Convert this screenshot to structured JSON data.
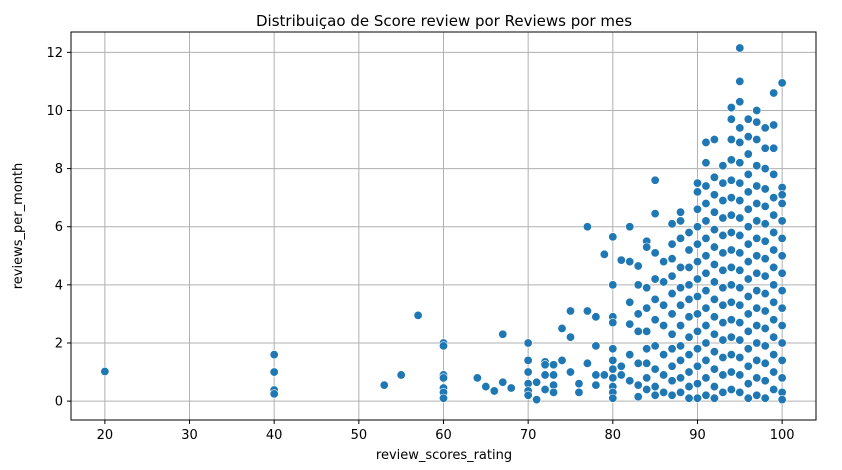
{
  "chart_data": {
    "type": "scatter",
    "title": "Distribuiçao de Score review por Reviews por mes",
    "xlabel": "review_scores_rating",
    "ylabel": "reviews_per_month",
    "xlim": [
      16,
      104
    ],
    "ylim": [
      -0.65,
      12.7
    ],
    "xticks": [
      20,
      30,
      40,
      50,
      60,
      70,
      80,
      90,
      100
    ],
    "yticks": [
      0,
      2,
      4,
      6,
      8,
      10,
      12
    ],
    "grid": true,
    "point_color": "#1f77b4",
    "points": [
      [
        20,
        1.02
      ],
      [
        40,
        1.6
      ],
      [
        40,
        1.0
      ],
      [
        40,
        0.38
      ],
      [
        40,
        0.25
      ],
      [
        53,
        0.55
      ],
      [
        55,
        0.9
      ],
      [
        57,
        2.95
      ],
      [
        60,
        2.0
      ],
      [
        60,
        1.9
      ],
      [
        60,
        0.9
      ],
      [
        60,
        0.8
      ],
      [
        60,
        0.45
      ],
      [
        60,
        0.3
      ],
      [
        60,
        0.1
      ],
      [
        64,
        0.8
      ],
      [
        65,
        0.5
      ],
      [
        66,
        0.35
      ],
      [
        67,
        0.65
      ],
      [
        67,
        2.3
      ],
      [
        68,
        0.45
      ],
      [
        70,
        2.0
      ],
      [
        70,
        1.4
      ],
      [
        70,
        1.0
      ],
      [
        70,
        0.6
      ],
      [
        70,
        0.35
      ],
      [
        70,
        0.2
      ],
      [
        71,
        0.05
      ],
      [
        71,
        0.65
      ],
      [
        72,
        1.35
      ],
      [
        72,
        1.25
      ],
      [
        72,
        0.9
      ],
      [
        72,
        0.4
      ],
      [
        73,
        1.25
      ],
      [
        73,
        0.9
      ],
      [
        73,
        0.55
      ],
      [
        73,
        0.3
      ],
      [
        74,
        1.4
      ],
      [
        74,
        2.5
      ],
      [
        75,
        1.0
      ],
      [
        75,
        2.2
      ],
      [
        75,
        3.1
      ],
      [
        76,
        0.3
      ],
      [
        76,
        0.6
      ],
      [
        77,
        1.3
      ],
      [
        77,
        3.1
      ],
      [
        77,
        6.0
      ],
      [
        78,
        0.55
      ],
      [
        78,
        0.9
      ],
      [
        78,
        1.9
      ],
      [
        78,
        2.9
      ],
      [
        79,
        0.9
      ],
      [
        79,
        5.05
      ],
      [
        80,
        5.65
      ],
      [
        80,
        4.0
      ],
      [
        80,
        2.9
      ],
      [
        80,
        2.7
      ],
      [
        80,
        1.8
      ],
      [
        80,
        1.4
      ],
      [
        80,
        1.1
      ],
      [
        80,
        0.8
      ],
      [
        80,
        0.5
      ],
      [
        80,
        0.3
      ],
      [
        80,
        0.1
      ],
      [
        81,
        4.85
      ],
      [
        81,
        1.2
      ],
      [
        81,
        0.9
      ],
      [
        82,
        6.0
      ],
      [
        82,
        4.8
      ],
      [
        82,
        3.4
      ],
      [
        82,
        2.65
      ],
      [
        82,
        1.6
      ],
      [
        82,
        0.7
      ],
      [
        83,
        4.65
      ],
      [
        83,
        4.0
      ],
      [
        83,
        3.0
      ],
      [
        83,
        2.4
      ],
      [
        83,
        1.3
      ],
      [
        83,
        0.55
      ],
      [
        83,
        0.15
      ],
      [
        84,
        5.5
      ],
      [
        84,
        5.3
      ],
      [
        84,
        3.9
      ],
      [
        84,
        3.2
      ],
      [
        84,
        2.4
      ],
      [
        84,
        1.8
      ],
      [
        84,
        1.3
      ],
      [
        84,
        0.8
      ],
      [
        84,
        0.4
      ],
      [
        85,
        7.6
      ],
      [
        85,
        6.45
      ],
      [
        85,
        5.1
      ],
      [
        85,
        4.2
      ],
      [
        85,
        3.5
      ],
      [
        85,
        2.8
      ],
      [
        85,
        1.9
      ],
      [
        85,
        1.1
      ],
      [
        85,
        0.5
      ],
      [
        85,
        0.2
      ],
      [
        86,
        4.8
      ],
      [
        86,
        4.1
      ],
      [
        86,
        3.3
      ],
      [
        86,
        2.6
      ],
      [
        86,
        1.6
      ],
      [
        86,
        0.9
      ],
      [
        86,
        0.3
      ],
      [
        87,
        6.1
      ],
      [
        87,
        5.4
      ],
      [
        87,
        4.9
      ],
      [
        87,
        4.3
      ],
      [
        87,
        3.7
      ],
      [
        87,
        3.0
      ],
      [
        87,
        2.3
      ],
      [
        87,
        1.8
      ],
      [
        87,
        1.2
      ],
      [
        87,
        0.7
      ],
      [
        87,
        0.2
      ],
      [
        88,
        6.5
      ],
      [
        88,
        6.2
      ],
      [
        88,
        5.6
      ],
      [
        88,
        4.6
      ],
      [
        88,
        3.9
      ],
      [
        88,
        3.3
      ],
      [
        88,
        2.6
      ],
      [
        88,
        1.9
      ],
      [
        88,
        1.4
      ],
      [
        88,
        0.8
      ],
      [
        88,
        0.3
      ],
      [
        89,
        5.8
      ],
      [
        89,
        5.2
      ],
      [
        89,
        4.6
      ],
      [
        89,
        4.0
      ],
      [
        89,
        3.5
      ],
      [
        89,
        2.9
      ],
      [
        89,
        2.2
      ],
      [
        89,
        1.6
      ],
      [
        89,
        1.0
      ],
      [
        89,
        0.5
      ],
      [
        89,
        0.1
      ],
      [
        90,
        7.5
      ],
      [
        90,
        7.2
      ],
      [
        90,
        6.6
      ],
      [
        90,
        6.0
      ],
      [
        90,
        5.4
      ],
      [
        90,
        4.8
      ],
      [
        90,
        4.2
      ],
      [
        90,
        3.6
      ],
      [
        90,
        3.0
      ],
      [
        90,
        2.4
      ],
      [
        90,
        1.8
      ],
      [
        90,
        1.2
      ],
      [
        90,
        0.6
      ],
      [
        90,
        0.1
      ],
      [
        91,
        8.9
      ],
      [
        91,
        8.2
      ],
      [
        91,
        7.4
      ],
      [
        91,
        6.8
      ],
      [
        91,
        6.2
      ],
      [
        91,
        5.6
      ],
      [
        91,
        5.0
      ],
      [
        91,
        4.4
      ],
      [
        91,
        3.8
      ],
      [
        91,
        3.2
      ],
      [
        91,
        2.6
      ],
      [
        91,
        2.0
      ],
      [
        91,
        1.4
      ],
      [
        91,
        0.8
      ],
      [
        91,
        0.2
      ],
      [
        92,
        9.0
      ],
      [
        92,
        7.7
      ],
      [
        92,
        7.1
      ],
      [
        92,
        6.5
      ],
      [
        92,
        5.9
      ],
      [
        92,
        5.3
      ],
      [
        92,
        4.7
      ],
      [
        92,
        4.1
      ],
      [
        92,
        3.5
      ],
      [
        92,
        2.9
      ],
      [
        92,
        2.3
      ],
      [
        92,
        1.7
      ],
      [
        92,
        1.1
      ],
      [
        92,
        0.5
      ],
      [
        92,
        0.1
      ],
      [
        93,
        8.1
      ],
      [
        93,
        7.5
      ],
      [
        93,
        6.9
      ],
      [
        93,
        6.3
      ],
      [
        93,
        5.7
      ],
      [
        93,
        5.1
      ],
      [
        93,
        4.5
      ],
      [
        93,
        3.9
      ],
      [
        93,
        3.3
      ],
      [
        93,
        2.7
      ],
      [
        93,
        2.1
      ],
      [
        93,
        1.5
      ],
      [
        93,
        0.9
      ],
      [
        93,
        0.3
      ],
      [
        94,
        10.1
      ],
      [
        94,
        9.7
      ],
      [
        94,
        9.0
      ],
      [
        94,
        8.3
      ],
      [
        94,
        7.6
      ],
      [
        94,
        7.0
      ],
      [
        94,
        6.4
      ],
      [
        94,
        5.8
      ],
      [
        94,
        5.2
      ],
      [
        94,
        4.6
      ],
      [
        94,
        4.0
      ],
      [
        94,
        3.4
      ],
      [
        94,
        2.8
      ],
      [
        94,
        2.2
      ],
      [
        94,
        1.6
      ],
      [
        94,
        1.0
      ],
      [
        94,
        0.4
      ],
      [
        95,
        12.15
      ],
      [
        95,
        11.0
      ],
      [
        95,
        10.3
      ],
      [
        95,
        9.4
      ],
      [
        95,
        8.9
      ],
      [
        95,
        8.2
      ],
      [
        95,
        7.5
      ],
      [
        95,
        6.9
      ],
      [
        95,
        6.3
      ],
      [
        95,
        5.7
      ],
      [
        95,
        5.1
      ],
      [
        95,
        4.5
      ],
      [
        95,
        3.9
      ],
      [
        95,
        3.3
      ],
      [
        95,
        2.7
      ],
      [
        95,
        2.1
      ],
      [
        95,
        1.5
      ],
      [
        95,
        0.9
      ],
      [
        95,
        0.3
      ],
      [
        96,
        9.7
      ],
      [
        96,
        9.1
      ],
      [
        96,
        8.5
      ],
      [
        96,
        7.8
      ],
      [
        96,
        7.2
      ],
      [
        96,
        6.6
      ],
      [
        96,
        6.0
      ],
      [
        96,
        5.4
      ],
      [
        96,
        4.8
      ],
      [
        96,
        4.2
      ],
      [
        96,
        3.6
      ],
      [
        96,
        3.0
      ],
      [
        96,
        2.4
      ],
      [
        96,
        1.8
      ],
      [
        96,
        1.2
      ],
      [
        96,
        0.6
      ],
      [
        96,
        0.1
      ],
      [
        97,
        10.0
      ],
      [
        97,
        9.6
      ],
      [
        97,
        9.0
      ],
      [
        97,
        8.1
      ],
      [
        97,
        7.4
      ],
      [
        97,
        6.8
      ],
      [
        97,
        6.2
      ],
      [
        97,
        5.6
      ],
      [
        97,
        5.0
      ],
      [
        97,
        4.4
      ],
      [
        97,
        3.8
      ],
      [
        97,
        3.2
      ],
      [
        97,
        2.6
      ],
      [
        97,
        2.0
      ],
      [
        97,
        1.4
      ],
      [
        97,
        0.8
      ],
      [
        97,
        0.2
      ],
      [
        98,
        9.4
      ],
      [
        98,
        8.7
      ],
      [
        98,
        8.0
      ],
      [
        98,
        7.3
      ],
      [
        98,
        6.7
      ],
      [
        98,
        6.1
      ],
      [
        98,
        5.5
      ],
      [
        98,
        4.9
      ],
      [
        98,
        4.3
      ],
      [
        98,
        3.7
      ],
      [
        98,
        3.1
      ],
      [
        98,
        2.5
      ],
      [
        98,
        1.9
      ],
      [
        98,
        1.3
      ],
      [
        98,
        0.7
      ],
      [
        98,
        0.1
      ],
      [
        99,
        10.6
      ],
      [
        99,
        9.5
      ],
      [
        99,
        8.7
      ],
      [
        99,
        7.8
      ],
      [
        99,
        7.0
      ],
      [
        99,
        6.4
      ],
      [
        99,
        5.8
      ],
      [
        99,
        5.2
      ],
      [
        99,
        4.6
      ],
      [
        99,
        4.0
      ],
      [
        99,
        3.4
      ],
      [
        99,
        2.8
      ],
      [
        99,
        2.2
      ],
      [
        99,
        1.6
      ],
      [
        99,
        1.0
      ],
      [
        99,
        0.4
      ],
      [
        100,
        10.95
      ],
      [
        100,
        7.35
      ],
      [
        100,
        7.1
      ],
      [
        100,
        6.8
      ],
      [
        100,
        6.2
      ],
      [
        100,
        5.6
      ],
      [
        100,
        5.0
      ],
      [
        100,
        4.4
      ],
      [
        100,
        3.8
      ],
      [
        100,
        3.2
      ],
      [
        100,
        2.6
      ],
      [
        100,
        2.0
      ],
      [
        100,
        1.4
      ],
      [
        100,
        0.8
      ],
      [
        100,
        0.3
      ],
      [
        100,
        0.05
      ]
    ]
  }
}
